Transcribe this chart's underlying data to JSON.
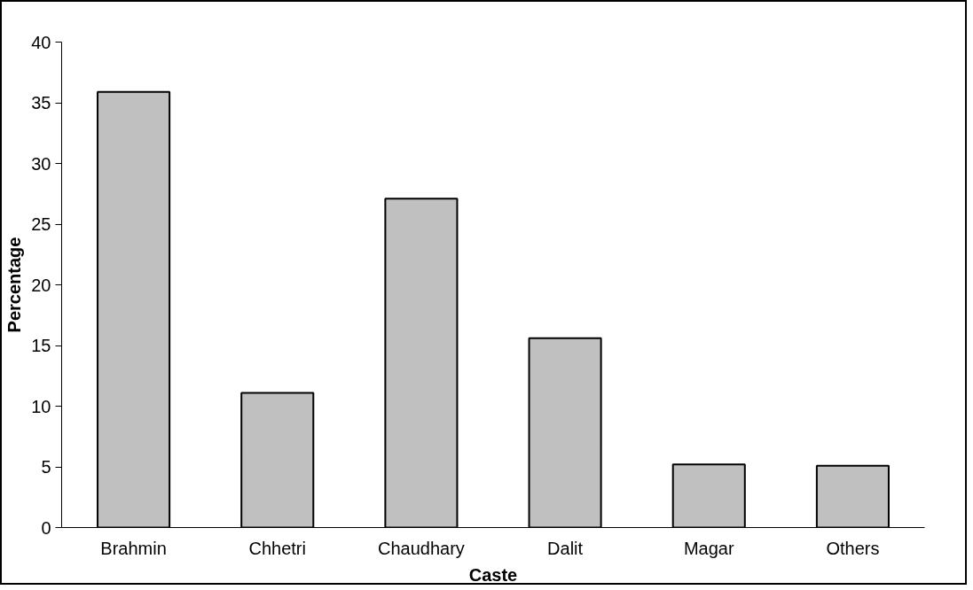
{
  "chart_data": {
    "type": "bar",
    "xlabel": "Caste",
    "ylabel": "Percentage",
    "categories": [
      "Brahmin",
      "Chhetri",
      "Chaudhary",
      "Dalit",
      "Magar",
      "Others"
    ],
    "values": [
      35.9,
      11.1,
      27.1,
      15.6,
      5.2,
      5.1
    ],
    "color": "#c0c0c0",
    "ylim": [
      0,
      40
    ],
    "yticks": [
      0,
      5,
      10,
      15,
      20,
      25,
      30,
      35,
      40
    ],
    "grid": false
  }
}
